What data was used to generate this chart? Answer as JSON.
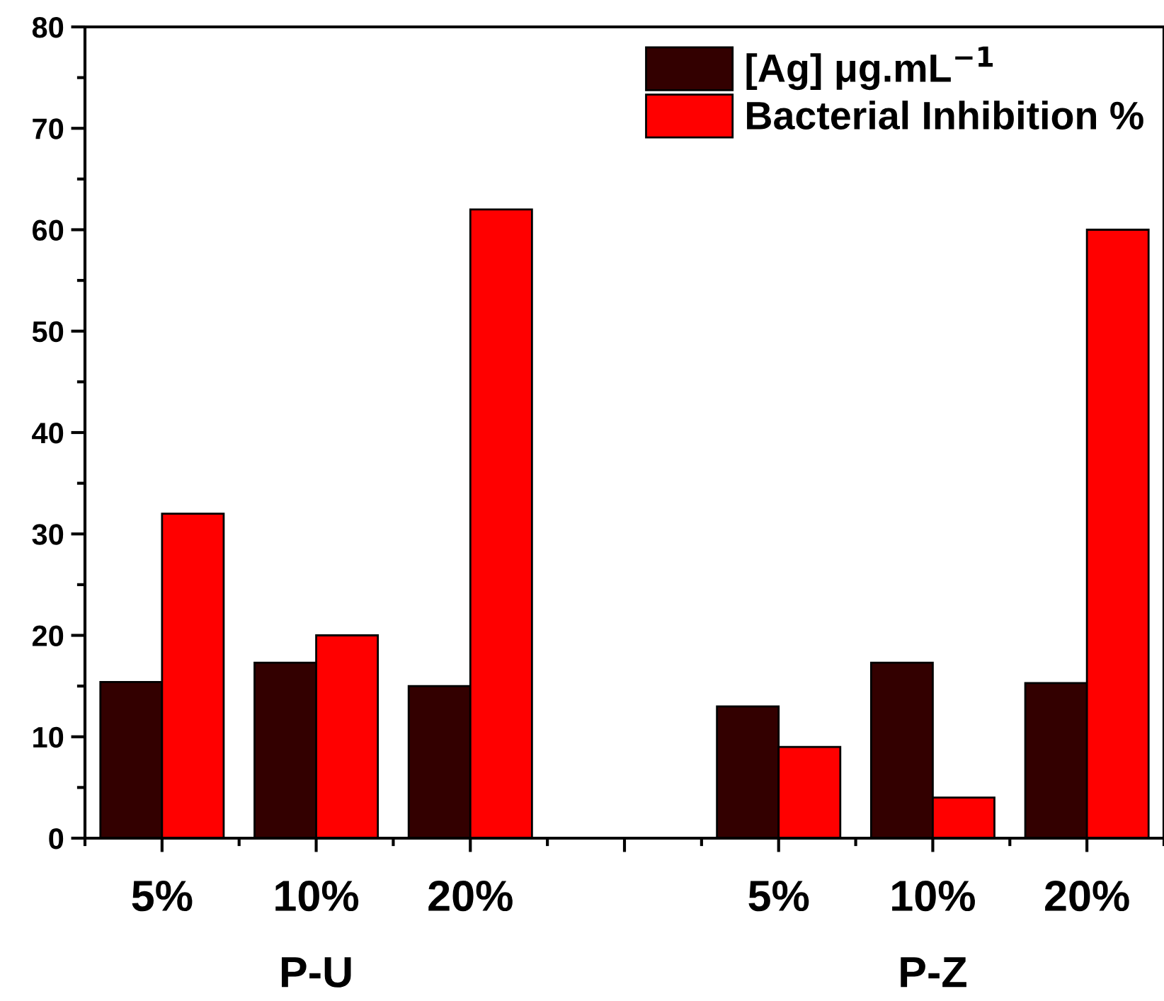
{
  "chart_data": {
    "type": "bar",
    "categories": [
      "5%",
      "10%",
      "20%",
      null,
      "5%",
      "10%",
      "20%"
    ],
    "series": [
      {
        "name": "[Ag] μg.mL$^{−1}$",
        "color": "#330000",
        "values": [
          15.4,
          17.3,
          15.0,
          null,
          13.0,
          17.3,
          15.3
        ]
      },
      {
        "name": "Bacterial Inhibition %",
        "color": "#ff0000",
        "values": [
          32,
          20,
          62,
          null,
          9,
          4,
          60
        ]
      }
    ],
    "ylim": [
      0,
      80
    ],
    "yticks": [
      0,
      10,
      20,
      30,
      40,
      50,
      60,
      70,
      80
    ],
    "annotations": [
      "P-U",
      "P-Z"
    ],
    "legend": "top right",
    "grid": false
  }
}
